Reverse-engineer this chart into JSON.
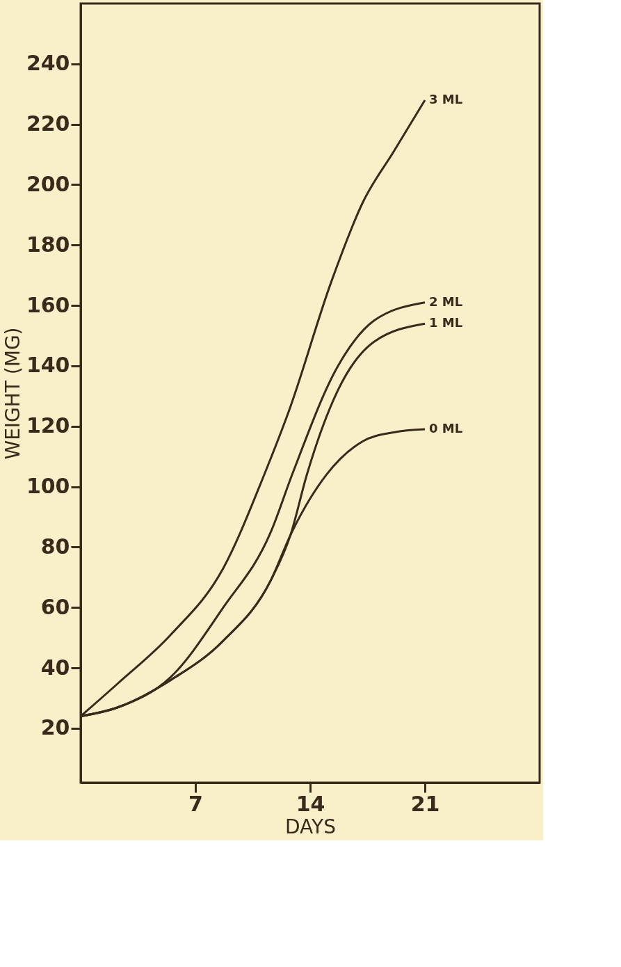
{
  "chart_data": {
    "type": "line",
    "xlabel": "DAYS",
    "ylabel": "WEIGHT (MG)",
    "xlim": [
      0,
      28
    ],
    "xticks": [
      7,
      14,
      21
    ],
    "ylim": [
      2,
      260
    ],
    "yticks": [
      20,
      40,
      60,
      80,
      100,
      120,
      140,
      160,
      180,
      200,
      220,
      240
    ],
    "grid": false,
    "legend": false,
    "marker": "none",
    "line_style": "solid",
    "series": [
      {
        "name": "3 ML",
        "color": "#3a2a1c",
        "x": [
          0,
          2.3,
          5.5,
          8.7,
          11.2,
          12.7,
          15.3,
          17.2,
          19.1,
          21
        ],
        "values": [
          24,
          35,
          51,
          73,
          104,
          125,
          168,
          194,
          211,
          228
        ]
      },
      {
        "name": "2 ML",
        "color": "#3a2a1c",
        "x": [
          0,
          2.3,
          5.5,
          8.7,
          11.6,
          12.9,
          15.7,
          17.9,
          21
        ],
        "values": [
          24,
          27,
          37,
          60,
          85,
          104,
          140,
          155,
          161
        ]
      },
      {
        "name": "1 ML",
        "color": "#3a2a1c",
        "x": [
          0,
          2.3,
          5.5,
          8.7,
          11.6,
          12.8,
          13.8,
          15.7,
          17.9,
          21
        ],
        "values": [
          24,
          27,
          36,
          49,
          69,
          84,
          104,
          132,
          148,
          154
        ]
      },
      {
        "name": "0 ML",
        "color": "#3a2a1c",
        "x": [
          0,
          2.3,
          5.5,
          8.7,
          11.6,
          12.8,
          15,
          17.2,
          19.1,
          21
        ],
        "values": [
          24,
          27,
          36,
          49,
          69,
          84,
          104,
          115,
          118,
          119
        ]
      }
    ]
  }
}
